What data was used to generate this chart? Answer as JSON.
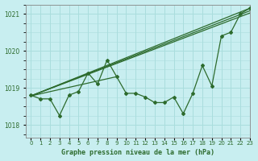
{
  "title": "Graphe pression niveau de la mer (hPa)",
  "bg_color": "#c8eef0",
  "grid_color": "#aadddd",
  "line_color": "#2d6b2d",
  "xlim": [
    -0.5,
    23
  ],
  "ylim": [
    1017.65,
    1021.25
  ],
  "yticks": [
    1018,
    1019,
    1020,
    1021
  ],
  "xtick_labels": [
    "0",
    "1",
    "2",
    "3",
    "4",
    "5",
    "6",
    "7",
    "8",
    "9",
    "10",
    "11",
    "12",
    "13",
    "14",
    "15",
    "16",
    "17",
    "18",
    "19",
    "20",
    "21",
    "22",
    "23"
  ],
  "main_series": {
    "x": [
      0,
      1,
      2,
      3,
      4,
      5,
      6,
      7,
      8,
      9,
      10,
      11,
      12,
      13,
      14,
      15,
      16,
      17,
      18,
      19,
      20,
      21,
      22,
      23
    ],
    "y": [
      1018.8,
      1018.7,
      1018.7,
      1018.25,
      1018.8,
      1018.9,
      1019.4,
      1019.1,
      1019.75,
      1019.3,
      1018.85,
      1018.85,
      1018.75,
      1018.6,
      1018.6,
      1018.75,
      1018.3,
      1018.85,
      1019.6,
      1019.05,
      1020.4,
      1020.5,
      1021.0,
      1021.15
    ]
  },
  "trend_lines": [
    {
      "x": [
        0,
        23
      ],
      "y": [
        1018.78,
        1021.15
      ]
    },
    {
      "x": [
        0,
        23
      ],
      "y": [
        1018.78,
        1021.08
      ]
    },
    {
      "x": [
        0,
        23
      ],
      "y": [
        1018.78,
        1021.02
      ]
    },
    {
      "x": [
        0,
        9
      ],
      "y": [
        1018.78,
        1019.3
      ]
    }
  ]
}
